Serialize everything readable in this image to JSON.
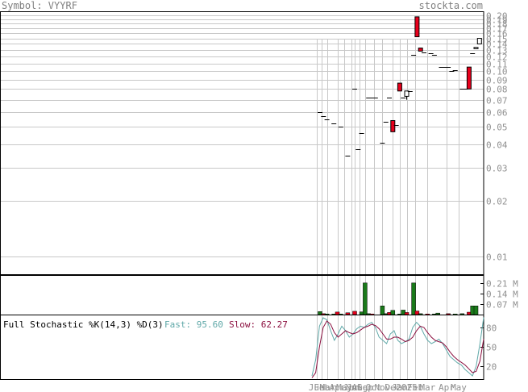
{
  "header": {
    "symbol_label": "Symbol: VYYRF",
    "site": "stockta.com"
  },
  "chart_data": [
    {
      "type": "candlestick",
      "title": "",
      "yscale": "log",
      "ylim": [
        0.008,
        0.21
      ],
      "y_ticks": [
        0.2,
        0.19,
        0.18,
        0.17,
        0.16,
        0.15,
        0.14,
        0.13,
        0.12,
        0.11,
        0.1,
        0.09,
        0.08,
        0.07,
        0.06,
        0.05,
        0.04,
        0.03,
        0.02,
        0.01
      ],
      "y_tick_labels": [
        "0.20",
        "0.19",
        "0.18",
        "0.17",
        "0.16",
        "0.15",
        "0.14",
        "0.13",
        "0.12",
        "0.11",
        "0.10",
        "0.09",
        "0.08",
        "0.07",
        "0.06",
        "0.05",
        "0.04",
        "0.03",
        "0.02",
        "0.01"
      ],
      "grid": true,
      "candles": [
        {
          "i": 0,
          "open": 0.06,
          "high": 0.06,
          "low": 0.06,
          "close": 0.06
        },
        {
          "i": 1,
          "open": 0.057,
          "high": 0.057,
          "low": 0.057,
          "close": 0.057
        },
        {
          "i": 2,
          "open": 0.055,
          "high": 0.055,
          "low": 0.055,
          "close": 0.055
        },
        {
          "i": 4,
          "open": 0.052,
          "high": 0.052,
          "low": 0.052,
          "close": 0.052
        },
        {
          "i": 6,
          "open": 0.05,
          "high": 0.05,
          "low": 0.05,
          "close": 0.05
        },
        {
          "i": 8,
          "open": 0.035,
          "high": 0.035,
          "low": 0.035,
          "close": 0.035
        },
        {
          "i": 10,
          "open": 0.08,
          "high": 0.08,
          "low": 0.08,
          "close": 0.08
        },
        {
          "i": 11,
          "open": 0.038,
          "high": 0.038,
          "low": 0.038,
          "close": 0.038
        },
        {
          "i": 12,
          "open": 0.046,
          "high": 0.046,
          "low": 0.046,
          "close": 0.046
        },
        {
          "i": 14,
          "open": 0.072,
          "high": 0.072,
          "low": 0.072,
          "close": 0.072
        },
        {
          "i": 15,
          "open": 0.072,
          "high": 0.072,
          "low": 0.072,
          "close": 0.072
        },
        {
          "i": 16,
          "open": 0.072,
          "high": 0.072,
          "low": 0.072,
          "close": 0.072
        },
        {
          "i": 18,
          "open": 0.041,
          "high": 0.041,
          "low": 0.041,
          "close": 0.041
        },
        {
          "i": 19,
          "open": 0.053,
          "high": 0.053,
          "low": 0.053,
          "close": 0.053
        },
        {
          "i": 20,
          "open": 0.072,
          "high": 0.072,
          "low": 0.072,
          "close": 0.072
        },
        {
          "i": 21,
          "open": 0.054,
          "high": 0.054,
          "low": 0.047,
          "close": 0.047
        },
        {
          "i": 22,
          "open": 0.051,
          "high": 0.051,
          "low": 0.051,
          "close": 0.051
        },
        {
          "i": 23,
          "open": 0.086,
          "high": 0.086,
          "low": 0.078,
          "close": 0.078
        },
        {
          "i": 24,
          "open": 0.072,
          "high": 0.072,
          "low": 0.072,
          "close": 0.072
        },
        {
          "i": 25,
          "open": 0.073,
          "high": 0.078,
          "low": 0.07,
          "close": 0.078
        },
        {
          "i": 26,
          "open": 0.078,
          "high": 0.078,
          "low": 0.078,
          "close": 0.078
        },
        {
          "i": 27,
          "open": 0.122,
          "high": 0.122,
          "low": 0.122,
          "close": 0.122
        },
        {
          "i": 28,
          "open": 0.196,
          "high": 0.196,
          "low": 0.153,
          "close": 0.153
        },
        {
          "i": 29,
          "open": 0.133,
          "high": 0.133,
          "low": 0.128,
          "close": 0.128
        },
        {
          "i": 30,
          "open": 0.126,
          "high": 0.126,
          "low": 0.126,
          "close": 0.126
        },
        {
          "i": 32,
          "open": 0.125,
          "high": 0.125,
          "low": 0.125,
          "close": 0.125
        },
        {
          "i": 33,
          "open": 0.122,
          "high": 0.122,
          "low": 0.122,
          "close": 0.122
        },
        {
          "i": 35,
          "open": 0.105,
          "high": 0.105,
          "low": 0.105,
          "close": 0.105
        },
        {
          "i": 36,
          "open": 0.105,
          "high": 0.105,
          "low": 0.105,
          "close": 0.105
        },
        {
          "i": 37,
          "open": 0.105,
          "high": 0.105,
          "low": 0.105,
          "close": 0.105
        },
        {
          "i": 38,
          "open": 0.1,
          "high": 0.1,
          "low": 0.1,
          "close": 0.1
        },
        {
          "i": 39,
          "open": 0.101,
          "high": 0.101,
          "low": 0.101,
          "close": 0.101
        },
        {
          "i": 41,
          "open": 0.08,
          "high": 0.08,
          "low": 0.08,
          "close": 0.08
        },
        {
          "i": 42,
          "open": 0.08,
          "high": 0.08,
          "low": 0.08,
          "close": 0.08
        },
        {
          "i": 43,
          "open": 0.105,
          "high": 0.105,
          "low": 0.08,
          "close": 0.08
        },
        {
          "i": 44,
          "open": 0.125,
          "high": 0.125,
          "low": 0.125,
          "close": 0.125
        },
        {
          "i": 45,
          "open": 0.132,
          "high": 0.134,
          "low": 0.132,
          "close": 0.134
        },
        {
          "i": 46,
          "open": 0.14,
          "high": 0.15,
          "low": 0.14,
          "close": 0.15
        }
      ]
    },
    {
      "type": "bar",
      "title": "",
      "y_ticks": [
        0.21,
        0.14,
        0.07
      ],
      "y_tick_labels": [
        "0.21 M",
        "0.14 M",
        "0.07 M"
      ],
      "ylim": [
        0,
        0.265
      ],
      "volume_bars": [
        {
          "i": 0,
          "v": 0.02,
          "c": "green"
        },
        {
          "i": 1,
          "v": 0.006,
          "c": "red"
        },
        {
          "i": 2,
          "v": 0.004,
          "c": "green"
        },
        {
          "i": 4,
          "v": 0.004,
          "c": "green"
        },
        {
          "i": 5,
          "v": 0.017,
          "c": "red"
        },
        {
          "i": 6,
          "v": 0.004,
          "c": "green"
        },
        {
          "i": 8,
          "v": 0.012,
          "c": "red"
        },
        {
          "i": 10,
          "v": 0.022,
          "c": "red"
        },
        {
          "i": 12,
          "v": 0.018,
          "c": "green"
        },
        {
          "i": 13,
          "v": 0.212,
          "c": "green"
        },
        {
          "i": 14,
          "v": 0.006,
          "c": "green"
        },
        {
          "i": 15,
          "v": 0.004,
          "c": "red"
        },
        {
          "i": 18,
          "v": 0.058,
          "c": "green"
        },
        {
          "i": 19,
          "v": 0.006,
          "c": "green"
        },
        {
          "i": 20,
          "v": 0.014,
          "c": "red"
        },
        {
          "i": 21,
          "v": 0.028,
          "c": "green"
        },
        {
          "i": 23,
          "v": 0.004,
          "c": "green"
        },
        {
          "i": 24,
          "v": 0.03,
          "c": "green"
        },
        {
          "i": 25,
          "v": 0.014,
          "c": "red"
        },
        {
          "i": 27,
          "v": 0.212,
          "c": "green"
        },
        {
          "i": 28,
          "v": 0.024,
          "c": "red"
        },
        {
          "i": 29,
          "v": 0.006,
          "c": "green"
        },
        {
          "i": 31,
          "v": 0.004,
          "c": "red"
        },
        {
          "i": 33,
          "v": 0.004,
          "c": "green"
        },
        {
          "i": 34,
          "v": 0.01,
          "c": "green"
        },
        {
          "i": 37,
          "v": 0.006,
          "c": "red"
        },
        {
          "i": 39,
          "v": 0.004,
          "c": "green"
        },
        {
          "i": 41,
          "v": 0.006,
          "c": "green"
        },
        {
          "i": 43,
          "v": 0.016,
          "c": "red"
        },
        {
          "i": 44,
          "v": 0.058,
          "c": "green"
        },
        {
          "i": 45,
          "v": 0.058,
          "c": "green"
        }
      ]
    },
    {
      "type": "line",
      "title": "Full Stochastic %K(14,3) %D(3)",
      "fast_label": "Fast: 95.60",
      "slow_label": "Slow: 62.27",
      "y_ticks": [
        80,
        50,
        20
      ],
      "y_tick_labels": [
        "80",
        "50",
        "20"
      ],
      "ylim": [
        0,
        100
      ],
      "series": [
        {
          "name": "Fast",
          "color": "#5fa8a8",
          "values": [
            5,
            30,
            82,
            95,
            92,
            75,
            60,
            70,
            82,
            75,
            65,
            70,
            78,
            82,
            80,
            85,
            88,
            80,
            65,
            60,
            55,
            70,
            75,
            60,
            55,
            58,
            62,
            80,
            88,
            82,
            70,
            60,
            55,
            58,
            62,
            55,
            45,
            35,
            30,
            25,
            22,
            15,
            10,
            5,
            20,
            55,
            95.6
          ]
        },
        {
          "name": "Slow",
          "color": "#8b0f3f",
          "values": [
            2,
            10,
            50,
            80,
            90,
            85,
            72,
            65,
            70,
            75,
            72,
            70,
            72,
            76,
            80,
            82,
            85,
            83,
            78,
            70,
            62,
            62,
            65,
            65,
            62,
            58,
            60,
            65,
            75,
            82,
            80,
            72,
            65,
            60,
            58,
            56,
            50,
            42,
            35,
            30,
            26,
            22,
            16,
            10,
            12,
            28,
            62.27
          ]
        }
      ]
    }
  ],
  "x_axis": {
    "n_bars": 47,
    "labels": [
      "Jun",
      "Feb",
      "Mar",
      "Apr",
      "May",
      "Jun",
      "Jul",
      "Aug",
      "Sep",
      "Oct",
      "Nov",
      "Dec",
      "Jan",
      "2025",
      "Feb",
      "Mar",
      "Apr",
      "May"
    ],
    "label_positions": [
      -1,
      0.5,
      2.2,
      5,
      7,
      9,
      10,
      11.5,
      13,
      15.5,
      18,
      21,
      23,
      25,
      27.5,
      31,
      36.5,
      40
    ]
  }
}
